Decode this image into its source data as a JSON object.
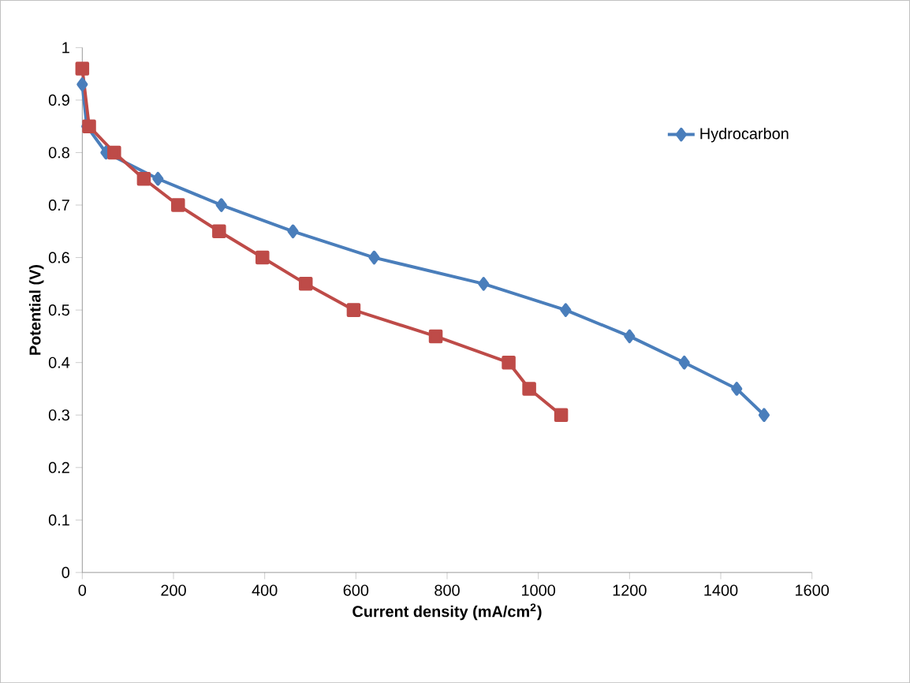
{
  "chart_data": {
    "type": "line",
    "xlabel": "Current density (mA/cm$^{2}$)",
    "ylabel": "Potential (V)",
    "xlim": [
      0,
      1600
    ],
    "xticks": [
      0,
      200,
      400,
      600,
      800,
      1000,
      1200,
      1400,
      1600
    ],
    "ylim": [
      0,
      1
    ],
    "yticks": [
      0,
      0.1,
      0.2,
      0.3,
      0.4,
      0.5,
      0.6,
      0.7,
      0.8,
      0.9,
      1
    ],
    "legend": "top right",
    "grid": false,
    "series": [
      {
        "name": "Hydrocarbon",
        "color": "#4a7ebb",
        "marker": "diamond",
        "x": [
          0,
          10,
          52,
          166,
          305,
          462,
          640,
          880,
          1060,
          1200,
          1320,
          1435,
          1495
        ],
        "values": [
          0.93,
          0.85,
          0.8,
          0.75,
          0.7,
          0.65,
          0.6,
          0.55,
          0.5,
          0.45,
          0.4,
          0.35,
          0.3
        ]
      },
      {
        "color": "#be4b48",
        "marker": "square",
        "x": [
          0,
          15,
          70,
          135,
          210,
          300,
          395,
          490,
          595,
          775,
          935,
          980,
          1050
        ],
        "values": [
          0.96,
          0.85,
          0.8,
          0.75,
          0.7,
          0.65,
          0.6,
          0.55,
          0.5,
          0.45,
          0.4,
          0.35,
          0.3
        ]
      }
    ]
  }
}
